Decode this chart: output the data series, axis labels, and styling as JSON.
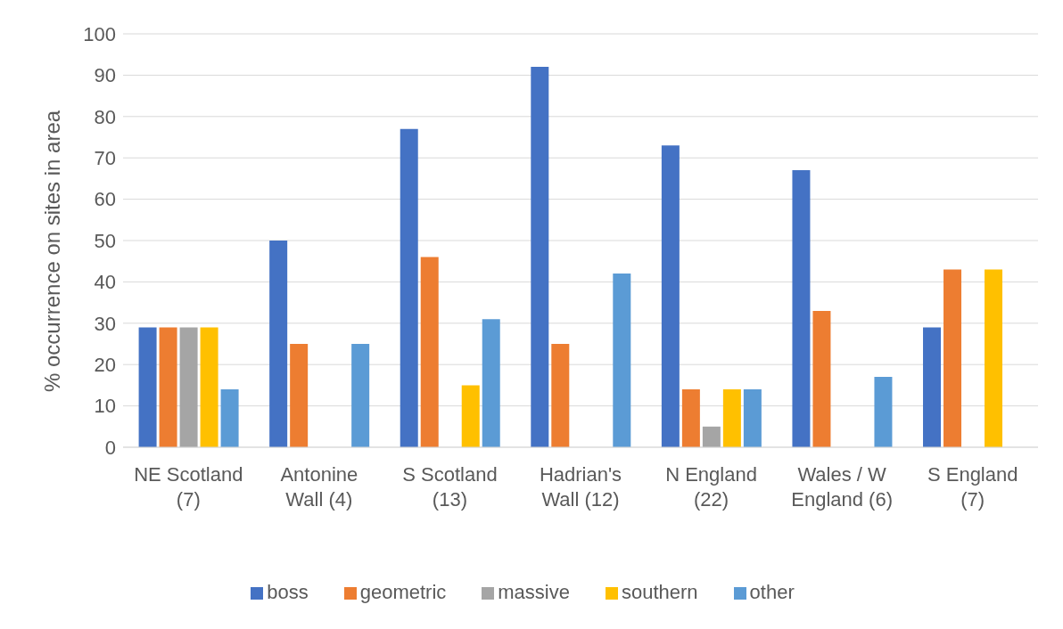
{
  "chart_data": {
    "type": "bar",
    "ylabel": "% occurrence on sites in area",
    "categories": [
      "NE Scotland (7)",
      "Antonine Wall (4)",
      "S Scotland (13)",
      "Hadrian's Wall (12)",
      "N England (22)",
      "Wales / W England (6)",
      "S England (7)"
    ],
    "series": [
      {
        "name": "boss",
        "color": "#4472c4",
        "values": [
          29,
          50,
          77,
          92,
          73,
          67,
          29
        ]
      },
      {
        "name": "geometric",
        "color": "#ed7d31",
        "values": [
          29,
          25,
          46,
          25,
          14,
          33,
          43
        ]
      },
      {
        "name": "massive",
        "color": "#a5a5a5",
        "values": [
          29,
          0,
          0,
          0,
          5,
          0,
          0
        ]
      },
      {
        "name": "southern",
        "color": "#ffc000",
        "values": [
          29,
          0,
          15,
          0,
          14,
          0,
          43
        ]
      },
      {
        "name": "other",
        "color": "#5b9bd5",
        "values": [
          14,
          25,
          31,
          42,
          14,
          17,
          0
        ]
      }
    ],
    "ylim": [
      0,
      100
    ],
    "yticks": [
      0,
      10,
      20,
      30,
      40,
      50,
      60,
      70,
      80,
      90,
      100
    ],
    "grid": "y",
    "legend": "bottom"
  }
}
